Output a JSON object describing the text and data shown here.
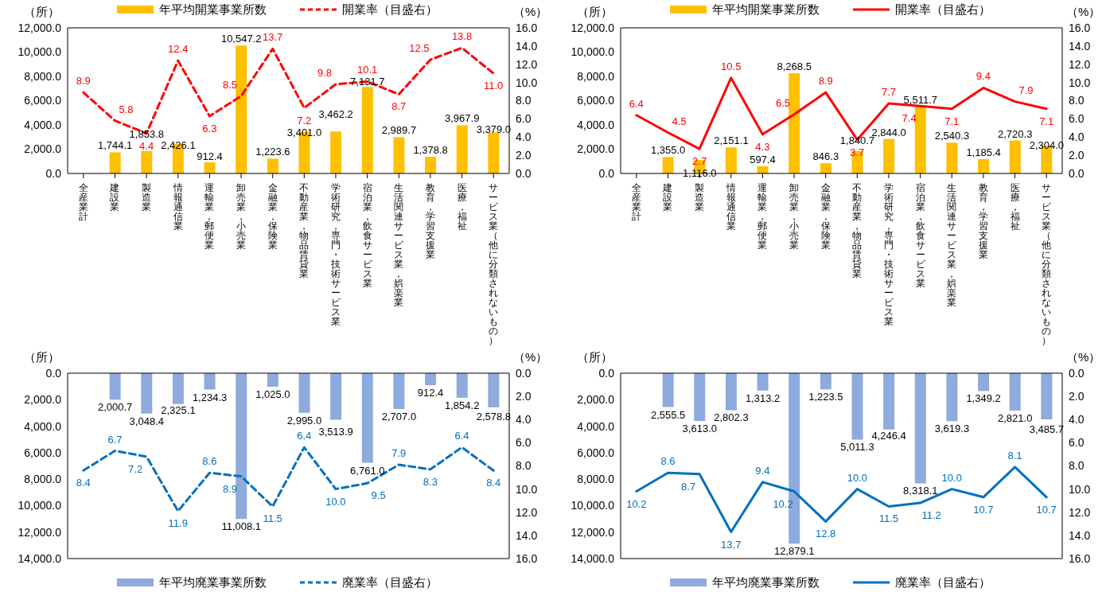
{
  "chart_data": [
    {
      "type": "bar",
      "ylabel": "（所）",
      "y2label": "（%）",
      "legend": "top",
      "data_labels": true,
      "categories": [
        "全産業計",
        "建設業",
        "製造業",
        "情報通信業",
        "運輸業，郵便業",
        "卸売業，小売業",
        "金融業，保険業",
        "不動産業，物品賃貸業",
        "学術研究，専門・技術サービス業",
        "宿泊業，飲食サービス業",
        "生活関連サービス業，娯楽業",
        "教育，学習支援業",
        "医療，福祉",
        "サービス業（他に分類されないもの）"
      ],
      "ylim": [
        0,
        12000
      ],
      "yticks": [
        {
          "value": 0,
          "label": "0.0"
        },
        {
          "value": 2000,
          "label": "2,000.0"
        },
        {
          "value": 4000,
          "label": "4,000.0"
        },
        {
          "value": 6000,
          "label": "6,000.0"
        },
        {
          "value": 8000,
          "label": "8,000.0"
        },
        {
          "value": 10000,
          "label": "10,000.0"
        },
        {
          "value": 12000,
          "label": "12,000.0"
        }
      ],
      "y2lim": [
        0,
        16
      ],
      "y2ticks": [
        {
          "value": 0,
          "label": "0.0"
        },
        {
          "value": 2,
          "label": "2.0"
        },
        {
          "value": 4,
          "label": "4.0"
        },
        {
          "value": 6,
          "label": "6.0"
        },
        {
          "value": 8,
          "label": "8.0"
        },
        {
          "value": 10,
          "label": "10.0"
        },
        {
          "value": 12,
          "label": "12.0"
        },
        {
          "value": 14,
          "label": "14.0"
        },
        {
          "value": 16,
          "label": "16.0"
        }
      ],
      "series": [
        {
          "name": "年平均開業事業所数",
          "color": "#ffc000",
          "values": [
            null,
            1744.1,
            1853.8,
            2426.1,
            912.4,
            10547.2,
            1223.6,
            3401.0,
            3462.2,
            7131.7,
            2989.7,
            1378.8,
            3967.9,
            3379.0
          ],
          "value_labels": [
            null,
            "1,744.1",
            "1,853.8",
            "2,426.1",
            "912.4",
            "10,547.2",
            "1,223.6",
            "3,401.0",
            "3,462.2",
            "7,131.7",
            "2,989.7",
            "1,378.8",
            "3,967.9",
            "3,379.0"
          ]
        },
        {
          "type": "line",
          "axis": "y2",
          "line_style": "dashed",
          "name": "開業率（目盛右）",
          "color": "#ff0000",
          "values": [
            8.9,
            5.8,
            4.4,
            12.4,
            6.3,
            8.5,
            13.7,
            7.2,
            9.8,
            10.1,
            8.7,
            12.5,
            13.8,
            11.0
          ],
          "value_labels": [
            "8.9",
            "5.8",
            "4.4",
            "12.4",
            "6.3",
            "8.5",
            "13.7",
            "7.2",
            "9.8",
            "10.1",
            "8.7",
            "12.5",
            "13.8",
            "11.0"
          ]
        }
      ]
    },
    {
      "type": "bar",
      "ylabel": "（所）",
      "y2label": "（%）",
      "legend": "top",
      "data_labels": true,
      "categories": [
        "全産業計",
        "建設業",
        "製造業",
        "情報通信業",
        "運輸業，郵便業",
        "卸売業，小売業",
        "金融業，保険業",
        "不動産業，物品賃貸業",
        "学術研究，専門・技術サービス業",
        "宿泊業，飲食サービス業",
        "生活関連サービス業，娯楽業",
        "教育，学習支援業",
        "医療，福祉",
        "サービス業（他に分類されないもの）"
      ],
      "ylim": [
        0,
        12000
      ],
      "yticks": [
        {
          "value": 0,
          "label": "0.0"
        },
        {
          "value": 2000,
          "label": "2,000.0"
        },
        {
          "value": 4000,
          "label": "4,000.0"
        },
        {
          "value": 6000,
          "label": "6,000.0"
        },
        {
          "value": 8000,
          "label": "8,000.0"
        },
        {
          "value": 10000,
          "label": "10,000.0"
        },
        {
          "value": 12000,
          "label": "12,000.0"
        }
      ],
      "y2lim": [
        0,
        16
      ],
      "y2ticks": [
        {
          "value": 0,
          "label": "0.0"
        },
        {
          "value": 2,
          "label": "2.0"
        },
        {
          "value": 4,
          "label": "4.0"
        },
        {
          "value": 6,
          "label": "6.0"
        },
        {
          "value": 8,
          "label": "8.0"
        },
        {
          "value": 10,
          "label": "10.0"
        },
        {
          "value": 12,
          "label": "12.0"
        },
        {
          "value": 14,
          "label": "14.0"
        },
        {
          "value": 16,
          "label": "16.0"
        }
      ],
      "series": [
        {
          "name": "年平均開業事業所数",
          "color": "#ffc000",
          "values": [
            null,
            1355.0,
            1116.0,
            2151.1,
            597.4,
            8268.5,
            846.3,
            1840.7,
            2844.0,
            5511.7,
            2540.3,
            1185.4,
            2720.3,
            2304.0
          ],
          "value_labels": [
            null,
            "1,355.0",
            "1,116.0",
            "2,151.1",
            "597.4",
            "8,268.5",
            "846.3",
            "1,840.7",
            "2,844.0",
            "5,511.7",
            "2,540.3",
            "1,185.4",
            "2,720.3",
            "2,304.0"
          ]
        },
        {
          "type": "line",
          "axis": "y2",
          "line_style": "solid",
          "name": "開業率（目盛右）",
          "color": "#ff0000",
          "values": [
            6.4,
            4.5,
            2.7,
            10.5,
            4.3,
            6.5,
            8.9,
            3.7,
            7.7,
            7.4,
            7.1,
            9.4,
            7.9,
            7.1
          ],
          "value_labels": [
            "6.4",
            "4.5",
            "2.7",
            "10.5",
            "4.3",
            "6.5",
            "8.9",
            "3.7",
            "7.7",
            "7.4",
            "7.1",
            "9.4",
            "7.9",
            "7.1"
          ]
        }
      ]
    },
    {
      "type": "bar",
      "ylabel": "（所）",
      "y2label": "（%）",
      "legend": "bottom",
      "data_labels": true,
      "tick_labels": "y",
      "categories": [
        "全産業計",
        "建設業",
        "製造業",
        "情報通信業",
        "運輸業，郵便業",
        "卸売業，小売業",
        "金融業，保険業",
        "不動産業，物品賃貸業",
        "学術研究，専門・技術サービス業",
        "宿泊業，飲食サービス業",
        "生活関連サービス業，娯楽業",
        "教育，学習支援業",
        "医療，福祉",
        "サービス業（他に分類されないもの）"
      ],
      "ylim": [
        14000,
        0
      ],
      "yticks": [
        {
          "value": 0,
          "label": "0.0"
        },
        {
          "value": 2000,
          "label": "2,000.0"
        },
        {
          "value": 4000,
          "label": "4,000.0"
        },
        {
          "value": 6000,
          "label": "6,000.0"
        },
        {
          "value": 8000,
          "label": "8,000.0"
        },
        {
          "value": 10000,
          "label": "10,000.0"
        },
        {
          "value": 12000,
          "label": "12,000.0"
        },
        {
          "value": 14000,
          "label": "14,000.0"
        }
      ],
      "y2lim": [
        16,
        0
      ],
      "y2ticks": [
        {
          "value": 0,
          "label": "0.0"
        },
        {
          "value": 2,
          "label": "2.0"
        },
        {
          "value": 4,
          "label": "4.0"
        },
        {
          "value": 6,
          "label": "6.0"
        },
        {
          "value": 8,
          "label": "8.0"
        },
        {
          "value": 10,
          "label": "10.0"
        },
        {
          "value": 12,
          "label": "12.0"
        },
        {
          "value": 14,
          "label": "14.0"
        },
        {
          "value": 16,
          "label": "16.0"
        }
      ],
      "series": [
        {
          "name": "年平均廃業事業所数",
          "color": "#8faadc",
          "values": [
            null,
            2000.7,
            3048.4,
            2325.1,
            1234.3,
            11008.1,
            1025.0,
            2995.0,
            3513.9,
            6761.0,
            2707.0,
            912.4,
            1854.2,
            2578.8
          ],
          "value_labels": [
            null,
            "2,000.7",
            "3,048.4",
            "2,325.1",
            "1,234.3",
            "11,008.1",
            "1,025.0",
            "2,995.0",
            "3,513.9",
            "6,761.0",
            "2,707.0",
            "912.4",
            "1,854.2",
            "2,578.8"
          ]
        },
        {
          "type": "line",
          "axis": "y2",
          "line_style": "dashed",
          "name": "廃業率（目盛右）",
          "color": "#0070c0",
          "values": [
            8.4,
            6.7,
            7.2,
            11.9,
            8.6,
            8.9,
            11.5,
            6.4,
            10.0,
            9.5,
            7.9,
            8.3,
            6.4,
            8.4
          ],
          "value_labels": [
            "8.4",
            "6.7",
            "7.2",
            "11.9",
            "8.6",
            "8.9",
            "11.5",
            "6.4",
            "10.0",
            "9.5",
            "7.9",
            "8.3",
            "6.4",
            "8.4"
          ]
        }
      ]
    },
    {
      "type": "bar",
      "ylabel": "（所）",
      "y2label": "（%）",
      "legend": "bottom",
      "data_labels": true,
      "tick_labels": "y",
      "categories": [
        "全産業計",
        "建設業",
        "製造業",
        "情報通信業",
        "運輸業，郵便業",
        "卸売業，小売業",
        "金融業，保険業",
        "不動産業，物品賃貸業",
        "学術研究，専門・技術サービス業",
        "宿泊業，飲食サービス業",
        "生活関連サービス業，娯楽業",
        "教育，学習支援業",
        "医療，福祉",
        "サービス業（他に分類されないもの）"
      ],
      "ylim": [
        14000,
        0
      ],
      "yticks": [
        {
          "value": 0,
          "label": "0.0"
        },
        {
          "value": 2000,
          "label": "2,000.0"
        },
        {
          "value": 4000,
          "label": "4,000.0"
        },
        {
          "value": 6000,
          "label": "6,000.0"
        },
        {
          "value": 8000,
          "label": "8,000.0"
        },
        {
          "value": 10000,
          "label": "10,000.0"
        },
        {
          "value": 12000,
          "label": "12,000.0"
        },
        {
          "value": 14000,
          "label": "14,000.0"
        }
      ],
      "y2lim": [
        16,
        0
      ],
      "y2ticks": [
        {
          "value": 0,
          "label": "0.0"
        },
        {
          "value": 2,
          "label": "2.0"
        },
        {
          "value": 4,
          "label": "4.0"
        },
        {
          "value": 6,
          "label": "6.0"
        },
        {
          "value": 8,
          "label": "8.0"
        },
        {
          "value": 10,
          "label": "10.0"
        },
        {
          "value": 12,
          "label": "12.0"
        },
        {
          "value": 14,
          "label": "14.0"
        },
        {
          "value": 16,
          "label": "16.0"
        }
      ],
      "series": [
        {
          "name": "年平均廃業事業所数",
          "color": "#8faadc",
          "values": [
            null,
            2555.5,
            3613.0,
            2802.3,
            1313.2,
            12879.1,
            1223.5,
            5011.3,
            4246.4,
            8318.1,
            3619.3,
            1349.2,
            2821.0,
            3485.7
          ],
          "value_labels": [
            null,
            "2,555.5",
            "3,613.0",
            "2,802.3",
            "1,313.2",
            "12,879.1",
            "1,223.5",
            "5,011.3",
            "4,246.4",
            "8,318.1",
            "3,619.3",
            "1,349.2",
            "2,821.0",
            "3,485.7"
          ]
        },
        {
          "type": "line",
          "axis": "y2",
          "line_style": "solid",
          "name": "廃業率（目盛右）",
          "color": "#0070c0",
          "values": [
            10.2,
            8.6,
            8.7,
            13.7,
            9.4,
            10.2,
            12.8,
            10.0,
            11.5,
            11.2,
            10.0,
            10.7,
            8.1,
            10.7
          ],
          "value_labels": [
            "10.2",
            "8.6",
            "8.7",
            "13.7",
            "9.4",
            "10.2",
            "12.8",
            "10.0",
            "11.5",
            "11.2",
            "10.0",
            "10.7",
            "8.1",
            "10.7"
          ]
        }
      ]
    }
  ]
}
